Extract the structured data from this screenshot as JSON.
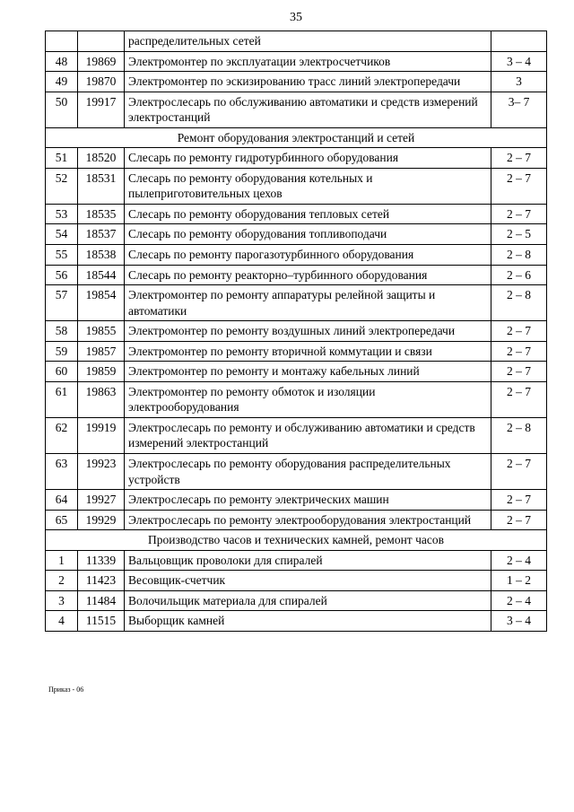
{
  "page_number": "35",
  "footer": "Приказ - 06",
  "rows": [
    {
      "t": "row",
      "num": "",
      "code": "",
      "desc": "распределительных сетей",
      "grade": ""
    },
    {
      "t": "row",
      "num": "48",
      "code": "19869",
      "desc": "Электромонтер по эксплуатации электросчетчиков",
      "grade": "3 – 4"
    },
    {
      "t": "row",
      "num": "49",
      "code": "19870",
      "desc": "Электромонтер по эскизированию трасс линий электропередачи",
      "grade": "3"
    },
    {
      "t": "row",
      "num": "50",
      "code": "19917",
      "desc": "Электрослесарь по обслуживанию автоматики и средств измерений электростанций",
      "grade": "3– 7"
    },
    {
      "t": "section",
      "text": "Ремонт оборудования электростанций и сетей"
    },
    {
      "t": "row",
      "num": "51",
      "code": "18520",
      "desc": "Слесарь по ремонту гидротурбинного оборудования",
      "grade": "2 – 7"
    },
    {
      "t": "row",
      "num": "52",
      "code": "18531",
      "desc": "Слесарь по ремонту оборудования котельных и пылеприготовительных цехов",
      "grade": "2 – 7"
    },
    {
      "t": "row",
      "num": "53",
      "code": "18535",
      "desc": "Слесарь по ремонту оборудования тепловых сетей",
      "grade": "2 – 7"
    },
    {
      "t": "row",
      "num": "54",
      "code": "18537",
      "desc": "Слесарь по ремонту оборудования топливоподачи",
      "grade": "2 – 5"
    },
    {
      "t": "row",
      "num": "55",
      "code": "18538",
      "desc": "Слесарь по ремонту парогазотурбинного оборудования",
      "grade": "2 – 8"
    },
    {
      "t": "row",
      "num": "56",
      "code": "18544",
      "desc": "Слесарь по ремонту реакторно–турбинного оборудования",
      "grade": "2 – 6"
    },
    {
      "t": "row",
      "num": "57",
      "code": "19854",
      "desc": "Электромонтер по ремонту аппаратуры релейной защиты и автоматики",
      "grade": "2 – 8"
    },
    {
      "t": "row",
      "num": "58",
      "code": "19855",
      "desc": "Электромонтер по ремонту воздушных линий электропередачи",
      "grade": "2 – 7"
    },
    {
      "t": "row",
      "num": "59",
      "code": "19857",
      "desc": "Электромонтер по ремонту вторичной коммутации и связи",
      "grade": "2 – 7"
    },
    {
      "t": "row",
      "num": "60",
      "code": "19859",
      "desc": "Электромонтер по ремонту и монтажу кабельных линий",
      "grade": "2 – 7"
    },
    {
      "t": "row",
      "num": "61",
      "code": "19863",
      "desc": "Электромонтер по ремонту обмоток и изоляции электрооборудования",
      "grade": "2 – 7"
    },
    {
      "t": "row",
      "num": "62",
      "code": "19919",
      "desc": "Электрослесарь по ремонту и обслуживанию автоматики и  средств измерений электростанций",
      "grade": "2 – 8"
    },
    {
      "t": "row",
      "num": "63",
      "code": "19923",
      "desc": "Электрослесарь по ремонту оборудования распределительных устройств",
      "grade": "2 – 7"
    },
    {
      "t": "row",
      "num": "64",
      "code": "19927",
      "desc": "Электрослесарь по ремонту электрических машин",
      "grade": "2 – 7"
    },
    {
      "t": "row",
      "num": "65",
      "code": "19929",
      "desc": "Электрослесарь по ремонту электрооборудования электростанций",
      "grade": "2 – 7"
    },
    {
      "t": "section",
      "text": "Производство часов и технических камней, ремонт часов"
    },
    {
      "t": "row",
      "num": "1",
      "code": "11339",
      "desc": "Вальцовщик проволоки для спиралей",
      "grade": "2 – 4"
    },
    {
      "t": "row",
      "num": "2",
      "code": "11423",
      "desc": "Весовщик-счетчик",
      "grade": "1 – 2"
    },
    {
      "t": "row",
      "num": "3",
      "code": "11484",
      "desc": "Волочильщик материала для спиралей",
      "grade": "2 – 4"
    },
    {
      "t": "row",
      "num": "4",
      "code": "11515",
      "desc": "Выборщик камней",
      "grade": "3 – 4"
    }
  ]
}
